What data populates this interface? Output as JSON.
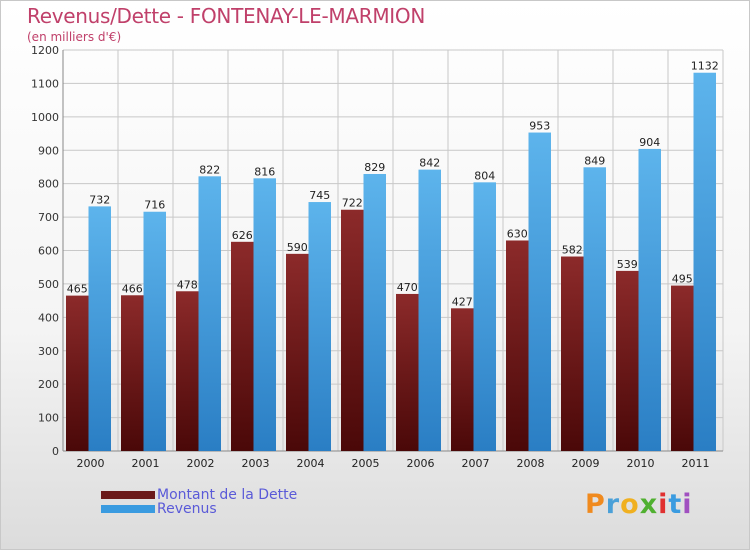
{
  "header": {
    "title": "Revenus/Dette - FONTENAY-LE-MARMION",
    "subtitle": "(en milliers d'€)"
  },
  "legend": {
    "items": [
      {
        "label": "Montant de la Dette",
        "color": "#6b1a1a"
      },
      {
        "label": "Revenus",
        "color": "#3a9be0"
      }
    ]
  },
  "brand": {
    "letters": [
      "P",
      "r",
      "o",
      "x",
      "i",
      "t",
      "i"
    ],
    "colors": [
      "#f08a1e",
      "#4aa0d8",
      "#f0b020",
      "#50b030",
      "#e03030",
      "#3a9be0",
      "#a050c0"
    ]
  },
  "chart_data": {
    "type": "bar",
    "categories": [
      "2000",
      "2001",
      "2002",
      "2003",
      "2004",
      "2005",
      "2006",
      "2007",
      "2008",
      "2009",
      "2010",
      "2011"
    ],
    "series": [
      {
        "name": "Montant de la Dette",
        "values": [
          465,
          466,
          478,
          626,
          590,
          722,
          470,
          427,
          630,
          582,
          539,
          495
        ],
        "color": "#6b1a1a"
      },
      {
        "name": "Revenus",
        "values": [
          732,
          716,
          822,
          816,
          745,
          829,
          842,
          804,
          953,
          849,
          904,
          1132
        ],
        "color": "#3a9be0"
      }
    ],
    "title": "Revenus/Dette - FONTENAY-LE-MARMION",
    "subtitle": "(en milliers d'€)",
    "ylim": [
      0,
      1200
    ],
    "yticks": [
      0,
      100,
      200,
      300,
      400,
      500,
      600,
      700,
      800,
      900,
      1000,
      1100,
      1200
    ],
    "grid": true,
    "legend_position": "bottom-left"
  }
}
